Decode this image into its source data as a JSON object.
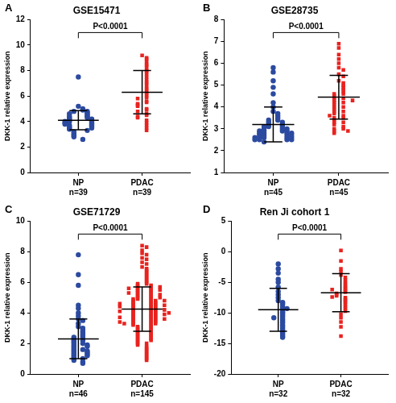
{
  "chart_data": [
    {
      "type": "scatter",
      "panel_label": "A",
      "title": "GSE15471",
      "y_label": "DKK-1 relative expression",
      "annotation": "P<0.0001",
      "ylim": [
        0,
        12
      ],
      "yticks": [
        0,
        2,
        4,
        6,
        8,
        10,
        12
      ],
      "grid": false,
      "series": [
        {
          "name": "NP",
          "n_label": "n=39",
          "color": "#2b4aa0",
          "marker": "circle",
          "mean": 4.1,
          "sd": 0.75,
          "values": [
            7.5,
            5.2,
            5.0,
            4.9,
            4.8,
            4.8,
            4.7,
            4.6,
            4.6,
            4.5,
            4.4,
            4.4,
            4.3,
            4.3,
            4.2,
            4.2,
            4.1,
            4.1,
            4.0,
            4.0,
            4.0,
            3.9,
            3.9,
            3.8,
            3.8,
            3.7,
            3.7,
            3.6,
            3.6,
            3.5,
            3.5,
            3.4,
            3.3,
            3.2,
            3.1,
            3.0,
            2.9,
            2.8,
            2.6
          ]
        },
        {
          "name": "PDAC",
          "n_label": "n=39",
          "color": "#e8231f",
          "marker": "square",
          "mean": 6.3,
          "sd": 1.7,
          "values": [
            9.2,
            9.0,
            8.9,
            8.7,
            8.5,
            8.4,
            8.2,
            8.0,
            7.9,
            7.7,
            7.5,
            7.3,
            7.1,
            7.0,
            6.8,
            6.6,
            6.5,
            6.3,
            6.2,
            6.0,
            5.9,
            5.8,
            5.6,
            5.5,
            5.4,
            5.3,
            5.2,
            5.0,
            4.9,
            4.8,
            4.6,
            4.5,
            4.4,
            4.3,
            4.1,
            3.9,
            3.7,
            3.5,
            3.3
          ]
        }
      ]
    },
    {
      "type": "scatter",
      "panel_label": "B",
      "title": "GSE28735",
      "y_label": "DKK-1 relative expression",
      "annotation": "P<0.0001",
      "ylim": [
        1,
        8
      ],
      "yticks": [
        1,
        2,
        3,
        4,
        5,
        6,
        7,
        8
      ],
      "grid": false,
      "series": [
        {
          "name": "NP",
          "n_label": "n=45",
          "color": "#2b4aa0",
          "marker": "circle",
          "mean": 3.2,
          "sd": 0.8,
          "values": [
            5.8,
            5.6,
            5.2,
            4.9,
            4.6,
            4.2,
            4.0,
            3.8,
            3.7,
            3.6,
            3.5,
            3.4,
            3.4,
            3.3,
            3.3,
            3.2,
            3.2,
            3.1,
            3.1,
            3.1,
            3.0,
            3.0,
            3.0,
            2.9,
            2.9,
            2.9,
            2.9,
            2.8,
            2.8,
            2.8,
            2.8,
            2.7,
            2.7,
            2.7,
            2.7,
            2.6,
            2.6,
            2.6,
            2.6,
            2.6,
            2.5,
            2.5,
            2.5,
            2.5,
            2.4
          ]
        },
        {
          "name": "PDAC",
          "n_label": "n=45",
          "color": "#e8231f",
          "marker": "square",
          "mean": 4.45,
          "sd": 1.0,
          "values": [
            6.9,
            6.7,
            6.4,
            6.2,
            6.0,
            5.8,
            5.7,
            5.5,
            5.4,
            5.2,
            5.1,
            5.0,
            4.9,
            4.8,
            4.7,
            4.6,
            4.6,
            4.5,
            4.4,
            4.4,
            4.3,
            4.2,
            4.2,
            4.1,
            4.0,
            4.0,
            3.9,
            3.8,
            3.8,
            3.7,
            3.6,
            3.5,
            3.5,
            3.4,
            3.3,
            3.3,
            3.2,
            3.1,
            3.0,
            3.0,
            2.9,
            2.9,
            2.8,
            3.6,
            4.3
          ]
        }
      ]
    },
    {
      "type": "scatter",
      "panel_label": "C",
      "title": "GSE71729",
      "y_label": "DKK-1 relative expression",
      "annotation": "P<0.0001",
      "ylim": [
        0,
        10
      ],
      "yticks": [
        0,
        2,
        4,
        6,
        8,
        10
      ],
      "grid": false,
      "series": [
        {
          "name": "NP",
          "n_label": "n=46",
          "color": "#2b4aa0",
          "marker": "circle",
          "mean": 2.3,
          "sd": 1.3,
          "values": [
            7.8,
            6.5,
            5.8,
            4.5,
            4.3,
            4.0,
            3.8,
            3.6,
            3.5,
            3.3,
            3.1,
            3.0,
            2.9,
            2.8,
            2.7,
            2.6,
            2.5,
            2.4,
            2.4,
            2.3,
            2.2,
            2.2,
            2.1,
            2.0,
            2.0,
            1.9,
            1.9,
            1.8,
            1.8,
            1.7,
            1.6,
            1.6,
            1.5,
            1.5,
            1.4,
            1.4,
            1.3,
            1.3,
            1.2,
            1.2,
            1.1,
            1.0,
            1.0,
            0.9,
            0.8,
            0.7
          ]
        },
        {
          "name": "PDAC",
          "n_label": "n=145",
          "color": "#e8231f",
          "marker": "square",
          "mean": 4.25,
          "sd": 1.45,
          "values": [
            8.4,
            8.3,
            8.1,
            7.9,
            7.8,
            7.6,
            7.5,
            7.3,
            7.2,
            7.0,
            6.9,
            6.8,
            6.7,
            6.6,
            6.5,
            6.4,
            6.3,
            6.2,
            6.1,
            6.0,
            5.9,
            5.9,
            5.8,
            5.8,
            5.7,
            5.7,
            5.6,
            5.6,
            5.5,
            5.5,
            5.4,
            5.4,
            5.3,
            5.3,
            5.2,
            5.2,
            5.1,
            5.1,
            5.0,
            5.0,
            4.9,
            4.9,
            4.9,
            4.8,
            4.8,
            4.8,
            4.7,
            4.7,
            4.7,
            4.6,
            4.6,
            4.6,
            4.5,
            4.5,
            4.5,
            4.4,
            4.4,
            4.4,
            4.3,
            4.3,
            4.3,
            4.2,
            4.2,
            4.2,
            4.1,
            4.1,
            4.1,
            4.0,
            4.0,
            4.0,
            3.9,
            3.9,
            3.9,
            3.8,
            3.8,
            3.8,
            3.7,
            3.7,
            3.7,
            3.6,
            3.6,
            3.6,
            3.5,
            3.5,
            3.5,
            3.4,
            3.4,
            3.4,
            3.3,
            3.3,
            3.3,
            3.2,
            3.2,
            3.1,
            3.1,
            3.0,
            3.0,
            2.9,
            2.9,
            2.8,
            2.8,
            2.7,
            2.7,
            2.6,
            2.6,
            2.5,
            2.5,
            2.4,
            2.4,
            2.3,
            2.3,
            2.2,
            2.2,
            2.1,
            2.0,
            2.0,
            1.9,
            1.8,
            1.7,
            1.6,
            1.5,
            1.4,
            1.3,
            1.2,
            1.1,
            1.0,
            0.9,
            5.6,
            5.3,
            4.8,
            4.5,
            4.2,
            3.9,
            3.6,
            3.3,
            5.5,
            5.0,
            4.6,
            4.1,
            3.7,
            5.7,
            5.2,
            4.4,
            4.0,
            3.4
          ]
        }
      ]
    },
    {
      "type": "scatter",
      "panel_label": "D",
      "title": "Ren Ji cohort 1",
      "y_label": "DKK-1 relative expression",
      "annotation": "P<0.0001",
      "ylim": [
        -20,
        5
      ],
      "yticks": [
        -20,
        -15,
        -10,
        -5,
        0,
        5
      ],
      "grid": false,
      "series": [
        {
          "name": "NP",
          "n_label": "n=32",
          "color": "#2b4aa0",
          "marker": "circle",
          "mean": -9.5,
          "sd": 3.5,
          "values": [
            -2.0,
            -2.8,
            -3.5,
            -4.5,
            -5.0,
            -5.8,
            -6.5,
            -7.0,
            -7.5,
            -8.0,
            -8.3,
            -8.6,
            -9.0,
            -9.2,
            -9.5,
            -9.8,
            -10.0,
            -10.3,
            -10.6,
            -11.0,
            -11.3,
            -11.6,
            -12.0,
            -12.3,
            -12.6,
            -12.9,
            -13.2,
            -13.5,
            -13.8,
            -14.0,
            -10.8,
            -9.3
          ]
        },
        {
          "name": "PDAC",
          "n_label": "n=32",
          "color": "#e8231f",
          "marker": "square",
          "mean": -6.7,
          "sd": 3.1,
          "values": [
            0.2,
            -1.5,
            -2.8,
            -3.3,
            -3.8,
            -4.2,
            -4.6,
            -5.0,
            -5.3,
            -5.6,
            -5.9,
            -6.1,
            -6.4,
            -6.6,
            -6.8,
            -7.0,
            -7.2,
            -7.5,
            -7.8,
            -8.0,
            -8.3,
            -8.6,
            -9.0,
            -9.3,
            -9.7,
            -10.2,
            -10.8,
            -11.5,
            -12.3,
            -13.8,
            -6.2,
            -7.4
          ]
        }
      ]
    }
  ]
}
